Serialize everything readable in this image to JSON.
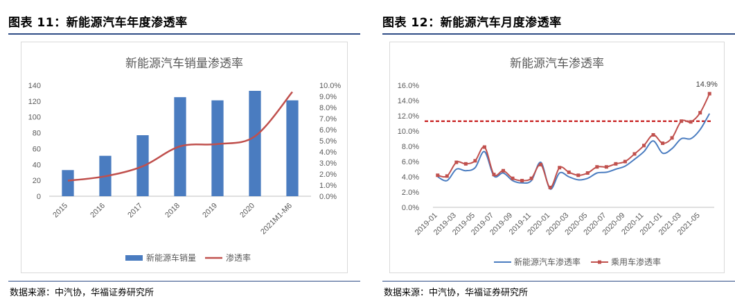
{
  "panels": [
    {
      "heading": "图表 11：新能源汽车年度渗透率",
      "source": "数据来源：中汽协，华福证券研究所"
    },
    {
      "heading": "图表 12：新能源汽车月度渗透率",
      "source": "数据来源：中汽协，华福证券研究所"
    }
  ],
  "chart_data": [
    {
      "type": "bar",
      "title": "新能源汽车销量渗透率",
      "categories": [
        "2015",
        "2016",
        "2017",
        "2018",
        "2019",
        "2020",
        "2021M1-M6"
      ],
      "series": [
        {
          "name": "新能源车销量",
          "type": "bar",
          "axis": "left",
          "color": "#4a7cc0",
          "values": [
            33,
            51,
            77,
            125,
            121,
            133,
            121
          ]
        },
        {
          "name": "渗透率",
          "type": "line",
          "axis": "right",
          "color": "#c0504d",
          "values": [
            1.4,
            1.8,
            2.7,
            4.5,
            4.7,
            5.4,
            9.4
          ]
        }
      ],
      "left_axis": {
        "min": 0,
        "max": 140,
        "ticks": [
          "0",
          "20",
          "40",
          "60",
          "80",
          "100",
          "120",
          "140"
        ]
      },
      "right_axis": {
        "min": 0,
        "max": 10,
        "ticks": [
          "0.0%",
          "1.0%",
          "2.0%",
          "3.0%",
          "4.0%",
          "5.0%",
          "6.0%",
          "7.0%",
          "8.0%",
          "9.0%",
          "10.0%"
        ]
      },
      "legend_position": "bottom",
      "grid": false
    },
    {
      "type": "line",
      "title": "新能源汽车渗透率",
      "x": [
        "2019-01",
        "2019-02",
        "2019-03",
        "2019-04",
        "2019-05",
        "2019-06",
        "2019-07",
        "2019-08",
        "2019-09",
        "2019-10",
        "2019-11",
        "2019-12",
        "2020-01",
        "2020-02",
        "2020-03",
        "2020-04",
        "2020-05",
        "2020-06",
        "2020-07",
        "2020-08",
        "2020-09",
        "2020-10",
        "2020-11",
        "2020-12",
        "2021-01",
        "2021-02",
        "2021-03",
        "2021-04",
        "2021-05",
        "2021-06"
      ],
      "x_tick_labels": [
        "2019-01",
        "2019-03",
        "2019-05",
        "2019-07",
        "2019-09",
        "2019-11",
        "2020-01",
        "2020-03",
        "2020-05",
        "2020-07",
        "2020-09",
        "2020-11",
        "2021-01",
        "2021-03",
        "2021-05"
      ],
      "series": [
        {
          "name": "新能源汽车渗透率",
          "color": "#4a7cc0",
          "marker": "none",
          "values": [
            4.0,
            3.5,
            5.0,
            4.8,
            5.2,
            7.3,
            4.1,
            4.5,
            3.5,
            3.2,
            3.5,
            5.9,
            2.4,
            4.5,
            4.0,
            3.6,
            3.8,
            4.5,
            4.6,
            5.0,
            5.4,
            6.3,
            7.3,
            8.7,
            7.1,
            7.7,
            9.0,
            9.0,
            10.2,
            12.3
          ]
        },
        {
          "name": "乘用车渗透率",
          "color": "#c0504d",
          "marker": "square",
          "values": [
            4.2,
            4.1,
            5.9,
            5.7,
            6.1,
            7.9,
            4.3,
            4.8,
            3.8,
            3.5,
            3.8,
            5.6,
            2.6,
            5.2,
            4.6,
            4.2,
            4.5,
            5.3,
            5.3,
            5.7,
            6.0,
            7.0,
            8.1,
            9.5,
            8.4,
            9.1,
            11.3,
            11.2,
            12.4,
            14.9
          ]
        }
      ],
      "reference_line": {
        "value": 11.3,
        "color": "#c00000",
        "style": "dashed"
      },
      "annotation": {
        "text": "14.9%",
        "series": "乘用车渗透率",
        "index": 29
      },
      "y_axis": {
        "min": 0,
        "max": 16,
        "ticks": [
          "0.0%",
          "2.0%",
          "4.0%",
          "6.0%",
          "8.0%",
          "10.0%",
          "12.0%",
          "14.0%",
          "16.0%"
        ]
      },
      "legend_position": "bottom",
      "grid": false
    }
  ]
}
